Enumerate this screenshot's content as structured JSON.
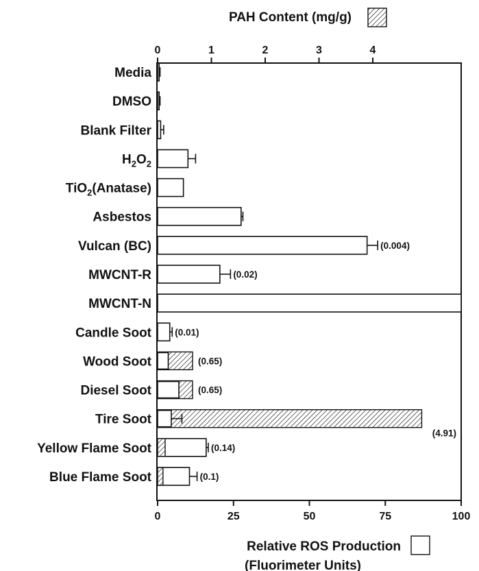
{
  "chart_data": {
    "type": "bar",
    "orientation": "horizontal",
    "categories": [
      "Media",
      "DMSO",
      "Blank Filter",
      "H2O2",
      "TiO2(Anatase)",
      "Asbestos",
      "Vulcan (BC)",
      "MWCNT-R",
      "MWCNT-N",
      "Candle Soot",
      "Wood Soot",
      "Diesel Soot",
      "Tire Soot",
      "Yellow Flame Soot",
      "Blue Flame Soot"
    ],
    "series": [
      {
        "name": "Relative ROS Production",
        "pattern": "open",
        "axis": "bottom",
        "values": [
          0.5,
          0.5,
          1,
          10,
          8.5,
          27.5,
          69,
          20.5,
          100,
          4,
          3.5,
          7,
          4.5,
          16,
          10.5
        ],
        "errors": [
          0.3,
          0.3,
          1,
          2.5,
          null,
          0.6,
          3.5,
          3.5,
          null,
          0.8,
          null,
          null,
          3.5,
          0.7,
          2.5
        ]
      },
      {
        "name": "PAH Content",
        "pattern": "hatched",
        "axis": "top",
        "values": [
          null,
          null,
          null,
          null,
          null,
          null,
          0.004,
          0.02,
          null,
          0.01,
          0.65,
          0.65,
          4.91,
          0.14,
          0.1
        ]
      }
    ],
    "annotations": [
      {
        "category": "Vulcan (BC)",
        "text": "(0.004)"
      },
      {
        "category": "MWCNT-R",
        "text": "(0.02)"
      },
      {
        "category": "Candle Soot",
        "text": "(0.01)"
      },
      {
        "category": "Wood Soot",
        "text": "(0.65)"
      },
      {
        "category": "Diesel Soot",
        "text": "(0.65)"
      },
      {
        "category": "Tire Soot",
        "text": "(4.91)"
      },
      {
        "category": "Yellow Flame Soot",
        "text": "(0.14)"
      },
      {
        "category": "Blue Flame Soot",
        "text": "(0.1)"
      }
    ],
    "top_axis": {
      "label": "PAH Content (mg/g)",
      "ticks": [
        0,
        1,
        2,
        3,
        4
      ],
      "range": [
        0,
        5
      ]
    },
    "bottom_axis": {
      "label_line1": "Relative ROS Production",
      "label_line2": "(Fluorimeter Units)",
      "ticks": [
        0,
        25,
        50,
        75,
        100
      ],
      "range": [
        0,
        100
      ]
    },
    "grid": false,
    "legend": "axis-labels"
  }
}
